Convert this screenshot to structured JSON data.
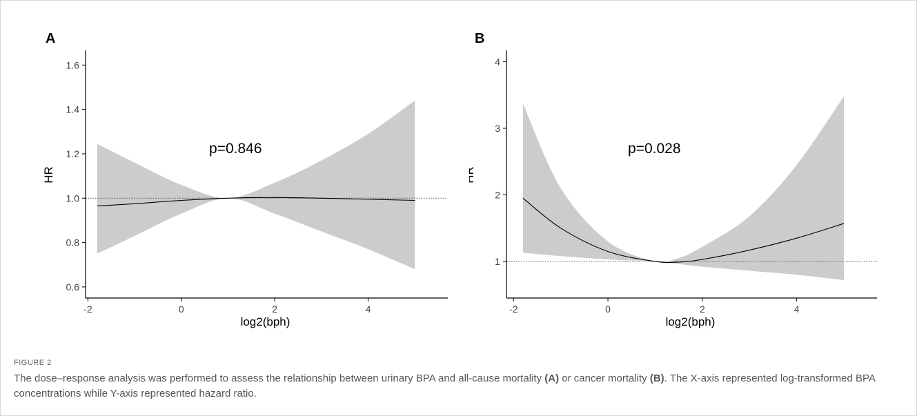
{
  "figure_label": "FIGURE 2",
  "caption": {
    "part1": "The dose–response analysis was performed to assess the relationship between urinary BPA and all-cause mortality ",
    "label_a": "(A)",
    "part2": " or cancer mortality ",
    "label_b": "(B)",
    "part3": ". The X-axis represented log-transformed BPA concentrations while Y-axis represented hazard ratio."
  },
  "chart_data": [
    {
      "panel": "A",
      "type": "area",
      "annotation": "p=0.846",
      "xlabel": "log2(bph)",
      "ylabel": "HR",
      "xlim": [
        -2.05,
        5.35
      ],
      "ylim": [
        0.55,
        1.66
      ],
      "xticks": [
        -2,
        0,
        2,
        4
      ],
      "yticks": [
        0.6,
        0.8,
        1.0,
        1.2,
        1.4,
        1.6
      ],
      "ytick_labels": [
        "0.6",
        "0.8",
        "1.0",
        "1.2",
        "1.4",
        "1.6"
      ],
      "reference_line": 1.0,
      "colors": {
        "band": "#cccccc",
        "line": "#000000",
        "reference": "#555555"
      },
      "x": [
        -1.8,
        -1,
        0,
        1,
        2,
        3,
        4,
        5
      ],
      "hr": [
        0.965,
        0.975,
        0.99,
        1.0,
        1.003,
        1.0,
        0.995,
        0.99
      ],
      "lower": [
        0.75,
        0.83,
        0.93,
        1.0,
        0.93,
        0.85,
        0.77,
        0.68
      ],
      "upper": [
        1.245,
        1.16,
        1.06,
        1.0,
        1.07,
        1.17,
        1.29,
        1.44
      ]
    },
    {
      "panel": "B",
      "type": "area",
      "annotation": "p=0.028",
      "xlabel": "log2(bph)",
      "ylabel": "HR",
      "xlim": [
        -2.15,
        5.35
      ],
      "ylim": [
        0.45,
        4.15
      ],
      "xticks": [
        -2,
        0,
        2,
        4
      ],
      "yticks": [
        1,
        2,
        3,
        4
      ],
      "ytick_labels": [
        "1",
        "2",
        "3",
        "4"
      ],
      "reference_line": 1.0,
      "colors": {
        "band": "#cccccc",
        "line": "#000000",
        "reference": "#555555"
      },
      "x": [
        -1.8,
        -1,
        0,
        1,
        1.5,
        2,
        3,
        4,
        5
      ],
      "hr": [
        1.95,
        1.5,
        1.15,
        1.0,
        0.99,
        1.03,
        1.17,
        1.35,
        1.57
      ],
      "lower": [
        1.13,
        1.08,
        1.03,
        1.0,
        0.96,
        0.92,
        0.86,
        0.8,
        0.72
      ],
      "upper": [
        3.37,
        2.1,
        1.3,
        1.0,
        1.05,
        1.22,
        1.68,
        2.45,
        3.48
      ]
    }
  ]
}
